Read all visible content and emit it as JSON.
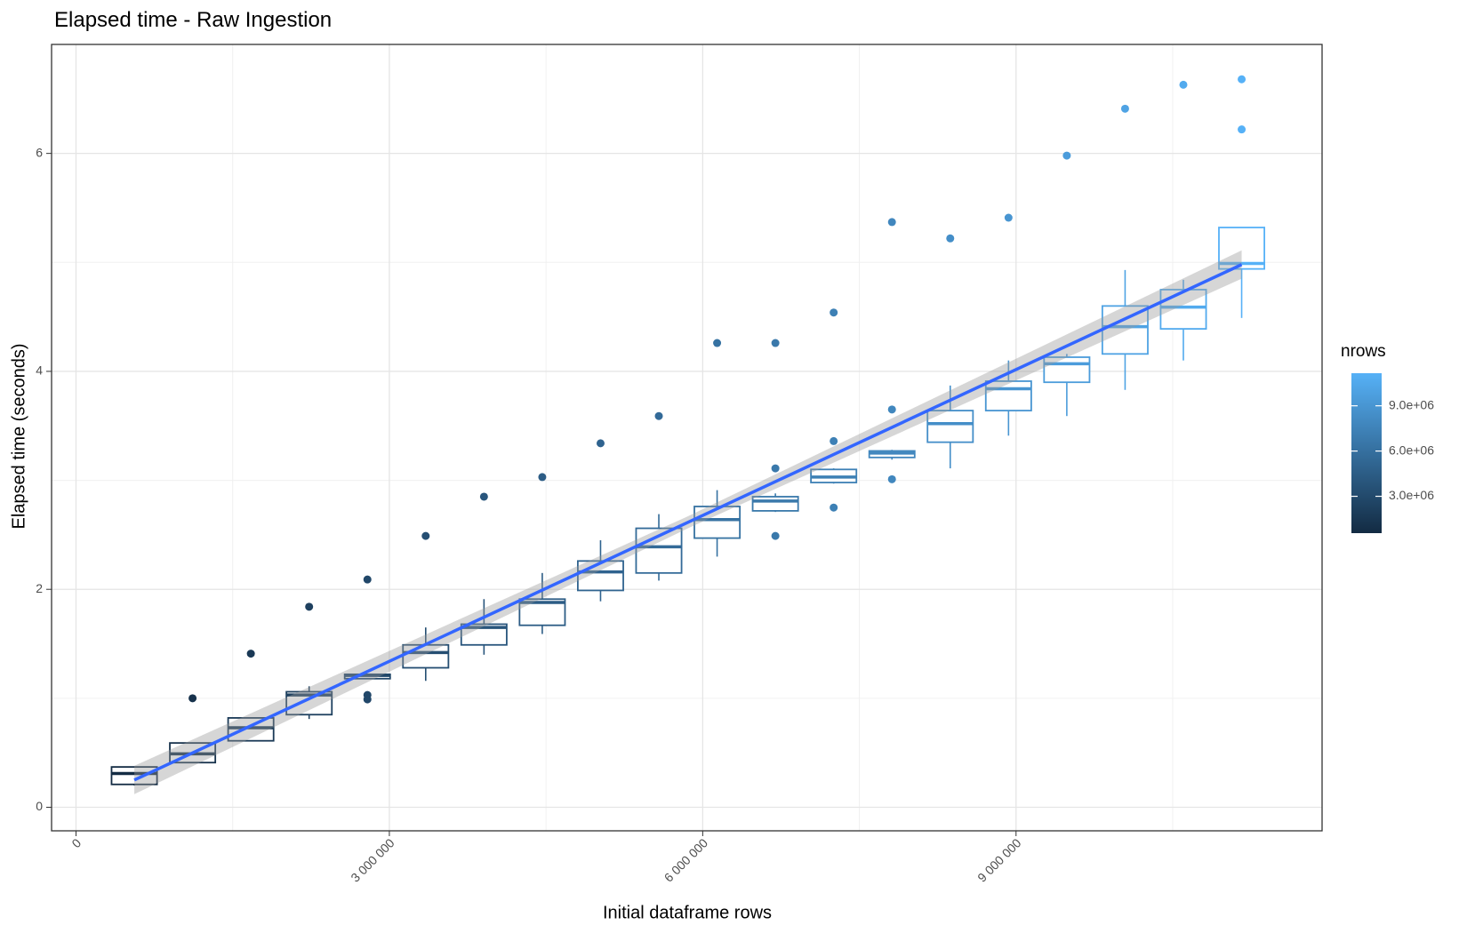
{
  "chart_data": {
    "type": "boxplot",
    "title": "Elapsed time - Raw Ingestion",
    "x_label": "Initial dataframe rows",
    "y_label": "Elapsed time (seconds)",
    "xlim": [
      -234000,
      11930000
    ],
    "ylim": [
      -0.216,
      7.0
    ],
    "xticks": [
      {
        "value": 0,
        "label": "0"
      },
      {
        "value": 3000000,
        "label": "3 000 000"
      },
      {
        "value": 6000000,
        "label": "6 000 000"
      },
      {
        "value": 9000000,
        "label": "9 000 000"
      }
    ],
    "yticks": [
      0,
      2,
      4,
      6
    ],
    "x_minor_grid": [
      1500000,
      4500000,
      7500000,
      10500000
    ],
    "y_minor_grid": [
      1,
      3,
      5
    ],
    "grid": true,
    "boxes": [
      {
        "x": 558000,
        "lower_whisker": 0.2,
        "q1": 0.21,
        "median": 0.31,
        "q3": 0.37,
        "upper_whisker": 0.37,
        "outliers": []
      },
      {
        "x": 1116000,
        "lower_whisker": 0.41,
        "q1": 0.41,
        "median": 0.49,
        "q3": 0.59,
        "upper_whisker": 0.59,
        "outliers": [
          1.0
        ]
      },
      {
        "x": 1674000,
        "lower_whisker": 0.61,
        "q1": 0.61,
        "median": 0.73,
        "q3": 0.82,
        "upper_whisker": 0.82,
        "outliers": [
          1.41
        ]
      },
      {
        "x": 2232000,
        "lower_whisker": 0.81,
        "q1": 0.85,
        "median": 1.03,
        "q3": 1.06,
        "upper_whisker": 1.11,
        "outliers": [
          1.84
        ]
      },
      {
        "x": 2790000,
        "lower_whisker": 1.18,
        "q1": 1.18,
        "median": 1.21,
        "q3": 1.22,
        "upper_whisker": 1.22,
        "outliers": [
          2.09,
          1.03,
          0.99
        ]
      },
      {
        "x": 3348000,
        "lower_whisker": 1.16,
        "q1": 1.28,
        "median": 1.42,
        "q3": 1.49,
        "upper_whisker": 1.65,
        "outliers": [
          2.49
        ]
      },
      {
        "x": 3906000,
        "lower_whisker": 1.4,
        "q1": 1.49,
        "median": 1.65,
        "q3": 1.68,
        "upper_whisker": 1.91,
        "outliers": [
          2.85
        ]
      },
      {
        "x": 4464000,
        "lower_whisker": 1.59,
        "q1": 1.67,
        "median": 1.88,
        "q3": 1.91,
        "upper_whisker": 2.15,
        "outliers": [
          3.03
        ]
      },
      {
        "x": 5022000,
        "lower_whisker": 1.89,
        "q1": 1.99,
        "median": 2.16,
        "q3": 2.26,
        "upper_whisker": 2.45,
        "outliers": [
          3.34
        ]
      },
      {
        "x": 5580000,
        "lower_whisker": 2.08,
        "q1": 2.15,
        "median": 2.39,
        "q3": 2.56,
        "upper_whisker": 2.69,
        "outliers": [
          3.59
        ]
      },
      {
        "x": 6138000,
        "lower_whisker": 2.3,
        "q1": 2.47,
        "median": 2.64,
        "q3": 2.76,
        "upper_whisker": 2.91,
        "outliers": [
          4.26
        ]
      },
      {
        "x": 6696000,
        "lower_whisker": 2.71,
        "q1": 2.72,
        "median": 2.81,
        "q3": 2.85,
        "upper_whisker": 2.88,
        "outliers": [
          4.26,
          3.11,
          2.49
        ]
      },
      {
        "x": 7254000,
        "lower_whisker": 2.97,
        "q1": 2.98,
        "median": 3.03,
        "q3": 3.1,
        "upper_whisker": 3.11,
        "outliers": [
          4.54,
          3.36,
          2.75
        ]
      },
      {
        "x": 7812000,
        "lower_whisker": 3.19,
        "q1": 3.21,
        "median": 3.25,
        "q3": 3.27,
        "upper_whisker": 3.28,
        "outliers": [
          5.37,
          3.65,
          3.01
        ]
      },
      {
        "x": 8370000,
        "lower_whisker": 3.11,
        "q1": 3.35,
        "median": 3.52,
        "q3": 3.64,
        "upper_whisker": 3.87,
        "outliers": [
          5.22
        ]
      },
      {
        "x": 8928000,
        "lower_whisker": 3.41,
        "q1": 3.64,
        "median": 3.84,
        "q3": 3.91,
        "upper_whisker": 4.1,
        "outliers": [
          5.41
        ]
      },
      {
        "x": 9486000,
        "lower_whisker": 3.59,
        "q1": 3.9,
        "median": 4.07,
        "q3": 4.13,
        "upper_whisker": 4.16,
        "outliers": [
          5.98
        ]
      },
      {
        "x": 10044000,
        "lower_whisker": 3.83,
        "q1": 4.16,
        "median": 4.41,
        "q3": 4.6,
        "upper_whisker": 4.93,
        "outliers": [
          6.41
        ]
      },
      {
        "x": 10602000,
        "lower_whisker": 4.1,
        "q1": 4.39,
        "median": 4.59,
        "q3": 4.75,
        "upper_whisker": 4.84,
        "outliers": [
          6.63
        ]
      },
      {
        "x": 11160000,
        "lower_whisker": 4.49,
        "q1": 4.94,
        "median": 4.99,
        "q3": 5.32,
        "upper_whisker": 5.32,
        "outliers": [
          6.68,
          6.22
        ]
      }
    ],
    "smooth": {
      "color": "#3366ff",
      "band_color": "#999999",
      "x": [
        558000,
        5859000,
        11160000
      ],
      "y": [
        0.25,
        2.615,
        4.98
      ],
      "ymin": [
        0.12,
        2.56,
        4.85
      ],
      "ymax": [
        0.38,
        2.67,
        5.11
      ]
    },
    "color_scale": {
      "title": "nrows",
      "low": "#132B43",
      "high": "#56B1F7",
      "limits": [
        558000,
        11160000
      ],
      "ticks": [
        {
          "value": 3000000,
          "label": "3.0e+06"
        },
        {
          "value": 6000000,
          "label": "6.0e+06"
        },
        {
          "value": 9000000,
          "label": "9.0e+06"
        }
      ]
    }
  }
}
